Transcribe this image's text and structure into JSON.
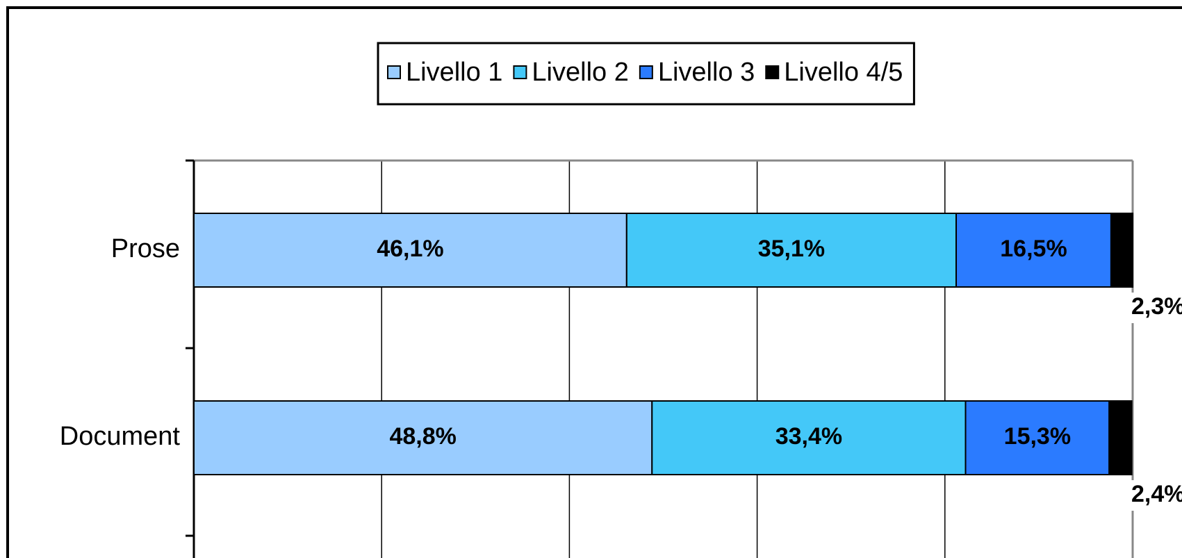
{
  "chart_data": {
    "type": "stacked-bar-horizontal",
    "categories": [
      "Prose",
      "Document"
    ],
    "series": [
      {
        "name": "Livello 1",
        "color": "#99ccff",
        "values": [
          46.1,
          48.8
        ],
        "value_labels": [
          "46,1%",
          "48,8%"
        ]
      },
      {
        "name": "Livello 2",
        "color": "#44c8f8",
        "values": [
          35.1,
          33.4
        ],
        "value_labels": [
          "35,1%",
          "33,4%"
        ]
      },
      {
        "name": "Livello 3",
        "color": "#2b7bff",
        "values": [
          16.5,
          15.3
        ],
        "value_labels": [
          "16,5%",
          "15,3%"
        ]
      },
      {
        "name": "Livello 4/5",
        "color": "#000000",
        "values": [
          2.3,
          2.4
        ],
        "value_labels": [
          "2,3%",
          "2,4%"
        ]
      }
    ],
    "xlim": [
      0,
      100
    ],
    "xticks": [
      0,
      20,
      40,
      60,
      80,
      100
    ],
    "grid": true,
    "legend": "top"
  }
}
